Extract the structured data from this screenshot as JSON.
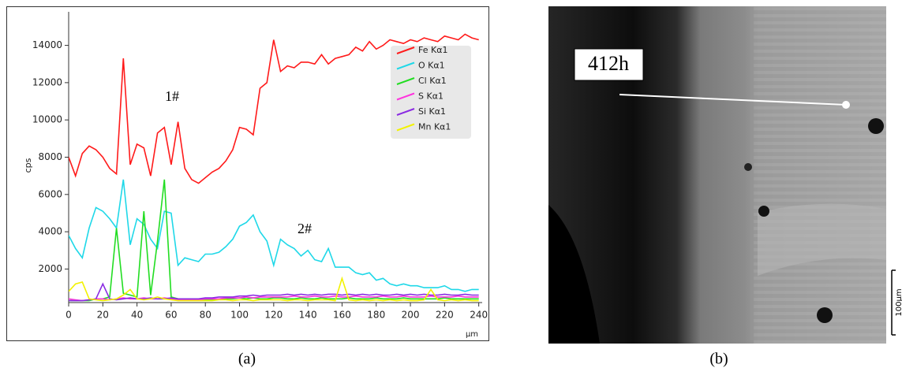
{
  "chart_data": {
    "type": "line",
    "x_label": "μm",
    "y_label": "cps",
    "x": [
      0,
      4,
      8,
      12,
      16,
      20,
      24,
      28,
      32,
      36,
      40,
      44,
      48,
      52,
      56,
      60,
      64,
      68,
      72,
      76,
      80,
      84,
      88,
      92,
      96,
      100,
      104,
      108,
      112,
      116,
      120,
      124,
      128,
      132,
      136,
      140,
      144,
      148,
      152,
      156,
      160,
      164,
      168,
      172,
      176,
      180,
      184,
      188,
      192,
      196,
      200,
      204,
      208,
      212,
      216,
      220,
      224,
      228,
      232,
      236,
      240
    ],
    "series": [
      {
        "name": "Fe Kα1",
        "color": "#ff1a1a",
        "values": [
          8000,
          7000,
          8200,
          8600,
          8400,
          8000,
          7400,
          7100,
          13300,
          7600,
          8700,
          8500,
          7000,
          9300,
          9600,
          7600,
          9900,
          7400,
          6800,
          6600,
          6900,
          7200,
          7400,
          7800,
          8400,
          9600,
          9500,
          9200,
          11700,
          12000,
          14300,
          12600,
          12900,
          12800,
          13100,
          13100,
          13000,
          13500,
          13000,
          13300,
          13400,
          13500,
          13900,
          13700,
          14200,
          13800,
          14000,
          14300,
          14200,
          14100,
          14300,
          14200,
          14400,
          14300,
          14200,
          14500,
          14400,
          14300,
          14600,
          14400,
          14300
        ]
      },
      {
        "name": "O Kα1",
        "color": "#1fd8e8",
        "values": [
          3800,
          3100,
          2600,
          4200,
          5300,
          5100,
          4700,
          4200,
          6800,
          3300,
          4700,
          4400,
          3600,
          3100,
          5100,
          5000,
          2200,
          2600,
          2500,
          2400,
          2800,
          2800,
          2900,
          3200,
          3600,
          4300,
          4500,
          4900,
          4000,
          3500,
          2200,
          3600,
          3300,
          3100,
          2700,
          3000,
          2500,
          2400,
          3100,
          2100,
          2100,
          2100,
          1800,
          1700,
          1800,
          1400,
          1500,
          1200,
          1100,
          1200,
          1100,
          1100,
          1000,
          1000,
          1000,
          1100,
          900,
          900,
          800,
          900,
          900
        ]
      },
      {
        "name": "Cl Kα1",
        "color": "#22dd22",
        "values": [
          300,
          300,
          300,
          300,
          400,
          400,
          500,
          4200,
          700,
          600,
          500,
          5100,
          600,
          3500,
          6800,
          500,
          400,
          350,
          350,
          350,
          350,
          350,
          400,
          400,
          400,
          450,
          400,
          450,
          400,
          400,
          450,
          450,
          400,
          400,
          450,
          400,
          400,
          450,
          400,
          400,
          400,
          450,
          400,
          400,
          400,
          450,
          400,
          400,
          400,
          450,
          400,
          400,
          400,
          400,
          400,
          450,
          400,
          400,
          400,
          400,
          400
        ]
      },
      {
        "name": "S Kα1",
        "color": "#ff33dd",
        "values": [
          400,
          350,
          300,
          350,
          400,
          400,
          350,
          400,
          450,
          400,
          400,
          450,
          400,
          400,
          450,
          400,
          350,
          350,
          350,
          350,
          400,
          400,
          400,
          450,
          450,
          450,
          500,
          450,
          500,
          500,
          500,
          500,
          500,
          550,
          500,
          500,
          550,
          500,
          500,
          550,
          500,
          500,
          550,
          500,
          500,
          500,
          550,
          500,
          500,
          550,
          500,
          500,
          500,
          550,
          500,
          500,
          500,
          550,
          500,
          500,
          500
        ]
      },
      {
        "name": "Si Kα1",
        "color": "#8a2be2",
        "values": [
          300,
          300,
          300,
          350,
          400,
          1200,
          400,
          350,
          400,
          450,
          400,
          400,
          450,
          400,
          400,
          450,
          400,
          400,
          400,
          400,
          450,
          450,
          500,
          500,
          500,
          550,
          550,
          600,
          550,
          600,
          600,
          600,
          650,
          600,
          650,
          600,
          650,
          600,
          650,
          650,
          600,
          650,
          600,
          650,
          600,
          650,
          600,
          600,
          650,
          600,
          650,
          600,
          650,
          600,
          600,
          650,
          600,
          600,
          650,
          600,
          600
        ]
      },
      {
        "name": "Mn Kα1",
        "color": "#f2f200",
        "values": [
          800,
          1200,
          1300,
          400,
          350,
          300,
          350,
          400,
          600,
          900,
          400,
          350,
          400,
          500,
          400,
          350,
          300,
          300,
          300,
          300,
          300,
          300,
          350,
          350,
          300,
          350,
          350,
          300,
          350,
          350,
          350,
          350,
          300,
          350,
          350,
          300,
          350,
          350,
          350,
          300,
          1500,
          350,
          300,
          350,
          300,
          350,
          300,
          350,
          300,
          350,
          300,
          300,
          350,
          900,
          350,
          300,
          350,
          300,
          350,
          300,
          300
        ]
      }
    ],
    "xlim": [
      0,
      242
    ],
    "xticks": [
      0,
      20,
      40,
      60,
      80,
      100,
      120,
      140,
      160,
      180,
      200,
      220,
      240
    ],
    "ylim": [
      200,
      15800
    ],
    "yticks": [
      2000,
      4000,
      6000,
      8000,
      10000,
      12000,
      14000
    ],
    "grid": false,
    "legend": "upper right",
    "annotations": [
      {
        "text": "1#"
      },
      {
        "text": "2#"
      }
    ]
  },
  "micrograph": {
    "label": "412h",
    "scale_bar": "100μm"
  },
  "captions": [
    "(a)",
    "(b)"
  ]
}
